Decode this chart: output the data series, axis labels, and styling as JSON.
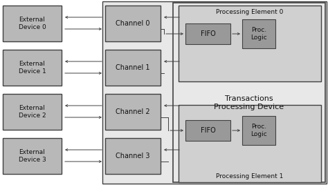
{
  "fig_width": 4.74,
  "fig_height": 2.68,
  "dpi": 100,
  "white": "#ffffff",
  "light_bg": "#e8e8e8",
  "box_medium": "#b8b8b8",
  "box_dark": "#999999",
  "edge_color": "#404040",
  "text_color": "#111111",
  "ed_labels": [
    "External\nDevice 0",
    "External\nDevice 1",
    "External\nDevice 2",
    "External\nDevice 3"
  ],
  "ch_labels": [
    "Channel 0",
    "Channel 1",
    "Channel 2",
    "Channel 3"
  ],
  "transactions_label": "Transactions\nProcessing Device",
  "pe0_label": "Processing Element 0",
  "pe1_label": "Processing Element 1",
  "fifo_label": "FIFO",
  "proc_label": "Proc.\nLogic"
}
